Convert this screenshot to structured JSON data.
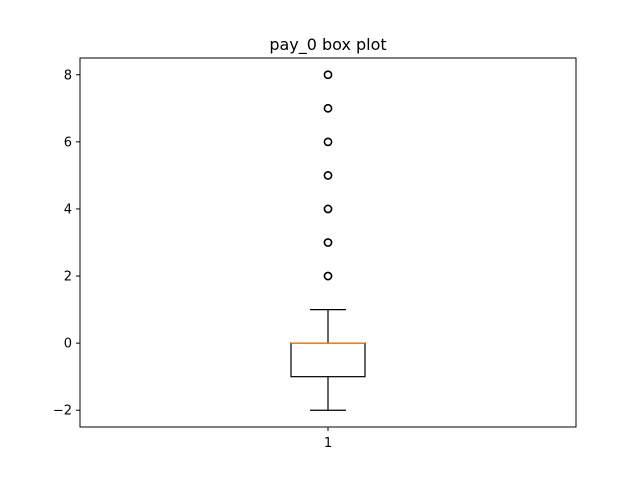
{
  "chart_data": {
    "type": "box",
    "title": "pay_0 box plot",
    "xlabel": "",
    "ylabel": "",
    "categories": [
      "1"
    ],
    "ylim": [
      -2.5,
      8.5
    ],
    "yticks": [
      -2,
      0,
      2,
      4,
      6,
      8
    ],
    "ytick_labels": [
      "−2",
      "0",
      "2",
      "4",
      "6",
      "8"
    ],
    "grid": false,
    "legend": "none",
    "boxes": [
      {
        "category": "1",
        "whisker_low": -2,
        "q1": -1,
        "median": 0,
        "q3": 0,
        "whisker_high": 1,
        "outliers": [
          2,
          3,
          4,
          5,
          6,
          7,
          8
        ]
      }
    ],
    "colors": {
      "box": "#000000",
      "median": "#ff7f0e",
      "outlier": "#000000",
      "axes": "#000000"
    }
  }
}
